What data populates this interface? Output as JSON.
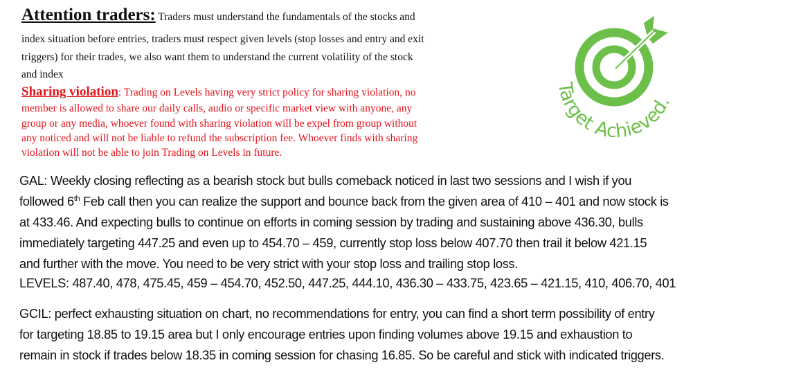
{
  "notice": {
    "title": "Attention traders:",
    "lines": [
      " Traders must understand the fundamentals of the stocks and",
      "index situation before entries, traders must respect given levels (stop losses and entry and exit",
      "triggers) for their trades, we also want them to understand the current volatility of the stock",
      "and index"
    ]
  },
  "sharing": {
    "title": "Sharing violation",
    "lines": [
      ": Trading on Levels having very strict policy for sharing violation, no",
      "member is allowed to share our daily calls, audio or specific market view with anyone, any",
      "group or any media, whoever found with sharing violation will be expel from group without",
      "any noticed and will not be liable to refund the subscription fee. Whoever finds with sharing",
      "violation will not be able to join Trading on Levels in future."
    ]
  },
  "logo": {
    "text": "Target Achieved.",
    "color": "#6cc04a"
  },
  "gal": {
    "line1": "GAL: Weekly closing reflecting as a bearish stock but bulls comeback noticed in last two sessions and I wish if you",
    "line2a": "followed 6",
    "line2sup": "th",
    "line2b": " Feb call then you can realize the support and bounce back from the given area of 410 – 401 and now stock is",
    "line3": "at 433.46. And expecting bulls to continue on efforts in coming session by trading and sustaining above 436.30, bulls",
    "line4": "immediately targeting 447.25 and even up to 454.70 – 459, currently stop loss below 407.70 then trail it below 421.15",
    "line5": "and further with the move. You need to be very strict with your stop loss and trailing stop loss.",
    "levels": "LEVELS: 487.40, 478, 475.45, 459 – 454.70, 452.50, 447.25, 444.10, 436.30 – 433.75, 423.65 – 421.15, 410, 406.70, 401"
  },
  "gcil": {
    "lines": [
      "GCIL: perfect exhausting situation on chart, no recommendations for entry, you can find a short term possibility of entry",
      "for targeting 18.85 to 19.15 area but I only encourage entries upon finding volumes above 19.15 and exhaustion to",
      "remain in stock if trades below 18.35 in coming session for chasing 16.85. So be careful and stick with indicated triggers."
    ]
  }
}
